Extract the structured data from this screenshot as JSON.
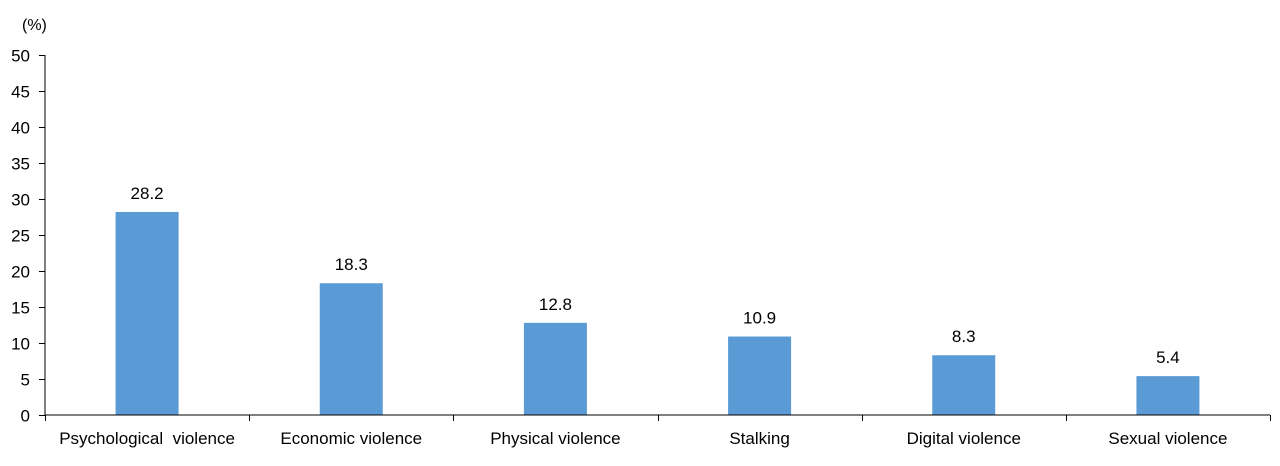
{
  "chart_data": {
    "type": "bar",
    "unit_label": "(%)",
    "categories": [
      "Psychological  violence",
      "Economic violence",
      "Physical violence",
      "Stalking",
      "Digital violence",
      "Sexual violence"
    ],
    "values": [
      28.2,
      18.3,
      12.8,
      10.9,
      8.3,
      5.4
    ],
    "data_labels": [
      "28.2",
      "18.3",
      "12.8",
      "10.9",
      "8.3",
      "5.4"
    ],
    "ylim": [
      0,
      50
    ],
    "yticks": [
      0,
      5,
      10,
      15,
      20,
      25,
      30,
      35,
      40,
      45,
      50
    ],
    "grid": false,
    "legend": "none",
    "colors": {
      "bar": "#5b9bd5",
      "axis": "#000000",
      "text": "#000000"
    }
  }
}
